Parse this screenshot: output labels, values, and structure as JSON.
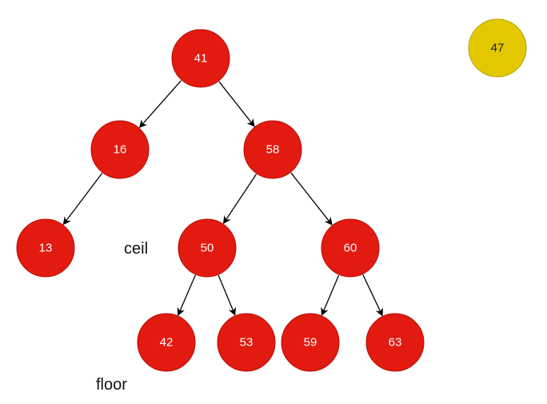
{
  "colors": {
    "node_fill": "#e31a10",
    "node_stroke": "#b01008",
    "node_text": "#ffffff",
    "highlight_fill": "#e3c800",
    "highlight_stroke": "#b8a000",
    "highlight_text": "#222222",
    "edge": "#000000"
  },
  "nodes": [
    {
      "id": "n41",
      "label": "41"
    },
    {
      "id": "n16",
      "label": "16"
    },
    {
      "id": "n58",
      "label": "58"
    },
    {
      "id": "n13",
      "label": "13"
    },
    {
      "id": "n50",
      "label": "50"
    },
    {
      "id": "n60",
      "label": "60"
    },
    {
      "id": "n42",
      "label": "42"
    },
    {
      "id": "n53",
      "label": "53"
    },
    {
      "id": "n59",
      "label": "59"
    },
    {
      "id": "n63",
      "label": "63"
    },
    {
      "id": "n47",
      "label": "47",
      "highlight": true
    }
  ],
  "edges": [
    {
      "from": "n41",
      "to": "n16"
    },
    {
      "from": "n41",
      "to": "n58"
    },
    {
      "from": "n16",
      "to": "n13"
    },
    {
      "from": "n58",
      "to": "n50"
    },
    {
      "from": "n58",
      "to": "n60"
    },
    {
      "from": "n50",
      "to": "n42"
    },
    {
      "from": "n50",
      "to": "n53"
    },
    {
      "from": "n60",
      "to": "n59"
    },
    {
      "from": "n60",
      "to": "n63"
    }
  ],
  "annotations": {
    "ceil": "ceil",
    "floor": "floor"
  }
}
